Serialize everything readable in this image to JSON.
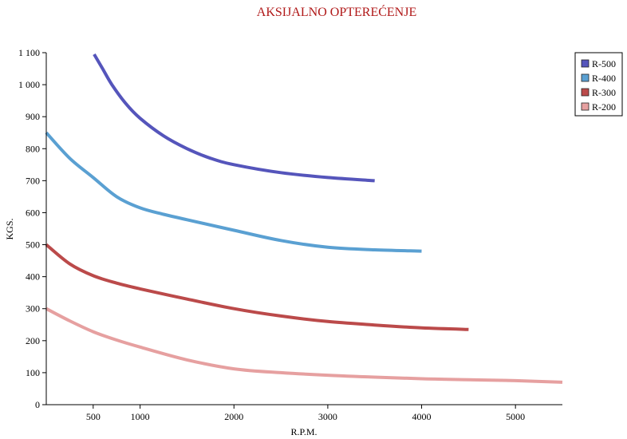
{
  "chart_data": {
    "type": "line",
    "title": "AKSIJALNO OPTEREĆENJE",
    "xlabel": "R.P.M.",
    "ylabel": "KGS.",
    "xlim": [
      0,
      5500
    ],
    "ylim": [
      0,
      1100
    ],
    "x_ticks": [
      500,
      1000,
      2000,
      3000,
      4000,
      5000
    ],
    "x_tick_labels": [
      "500",
      "1000",
      "2000",
      "3000",
      "4000",
      "5000"
    ],
    "y_ticks": [
      0,
      100,
      200,
      300,
      400,
      500,
      600,
      700,
      800,
      900,
      1000,
      1100
    ],
    "y_tick_labels": [
      "0",
      "100",
      "200",
      "300",
      "400",
      "500",
      "600",
      "700",
      "800",
      "900",
      "1 000",
      "1 100"
    ],
    "grid": false,
    "legend_position": "top-right",
    "series": [
      {
        "name": "R-500",
        "color": "#5555bb",
        "x": [
          510,
          600,
          700,
          850,
          1000,
          1250,
          1500,
          1750,
          2000,
          2500,
          3000,
          3500
        ],
        "y": [
          1095,
          1050,
          1000,
          940,
          895,
          840,
          800,
          770,
          750,
          725,
          710,
          700
        ]
      },
      {
        "name": "R-400",
        "color": "#5aa0d2",
        "x": [
          0,
          250,
          500,
          750,
          1000,
          1250,
          1500,
          2000,
          2500,
          3000,
          3500,
          4000
        ],
        "y": [
          850,
          770,
          710,
          650,
          615,
          595,
          578,
          545,
          513,
          492,
          484,
          480
        ]
      },
      {
        "name": "R-300",
        "color": "#bb4a4a",
        "x": [
          0,
          250,
          500,
          750,
          1000,
          1500,
          2000,
          2500,
          3000,
          3500,
          4000,
          4500
        ],
        "y": [
          500,
          440,
          403,
          380,
          362,
          330,
          300,
          277,
          260,
          249,
          240,
          235
        ]
      },
      {
        "name": "R-200",
        "color": "#e6a0a0",
        "x": [
          0,
          250,
          500,
          750,
          1000,
          1500,
          2000,
          2500,
          3000,
          3500,
          4000,
          4500,
          5000,
          5500
        ],
        "y": [
          300,
          262,
          228,
          202,
          180,
          140,
          112,
          100,
          92,
          86,
          81,
          78,
          75,
          70
        ]
      }
    ]
  }
}
